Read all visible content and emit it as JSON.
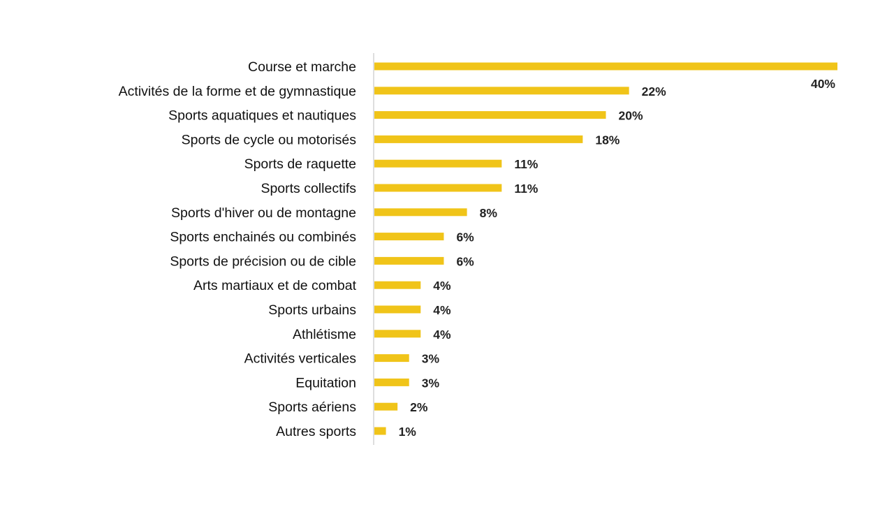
{
  "chart_data": {
    "type": "bar",
    "orientation": "horizontal",
    "categories": [
      "Course et marche",
      "Activités de la forme et de gymnastique",
      "Sports aquatiques et nautiques",
      "Sports de cycle ou motorisés",
      "Sports de raquette",
      "Sports collectifs",
      "Sports d'hiver ou de montagne",
      "Sports enchainés ou combinés",
      "Sports de précision ou de cible",
      "Arts martiaux et de combat",
      "Sports urbains",
      "Athlétisme",
      "Activités verticales",
      "Equitation",
      "Sports aériens",
      "Autres sports"
    ],
    "values": [
      40,
      22,
      20,
      18,
      11,
      11,
      8,
      6,
      6,
      4,
      4,
      4,
      3,
      3,
      2,
      1
    ],
    "value_labels": [
      "40%",
      "22%",
      "20%",
      "18%",
      "11%",
      "11%",
      "8%",
      "6%",
      "6%",
      "4%",
      "4%",
      "4%",
      "3%",
      "3%",
      "2%",
      "1%"
    ],
    "title": "",
    "xlabel": "",
    "ylabel": "",
    "xlim": [
      0,
      40
    ],
    "grid": false,
    "legend": "none",
    "bar_color": "#F0C419"
  }
}
